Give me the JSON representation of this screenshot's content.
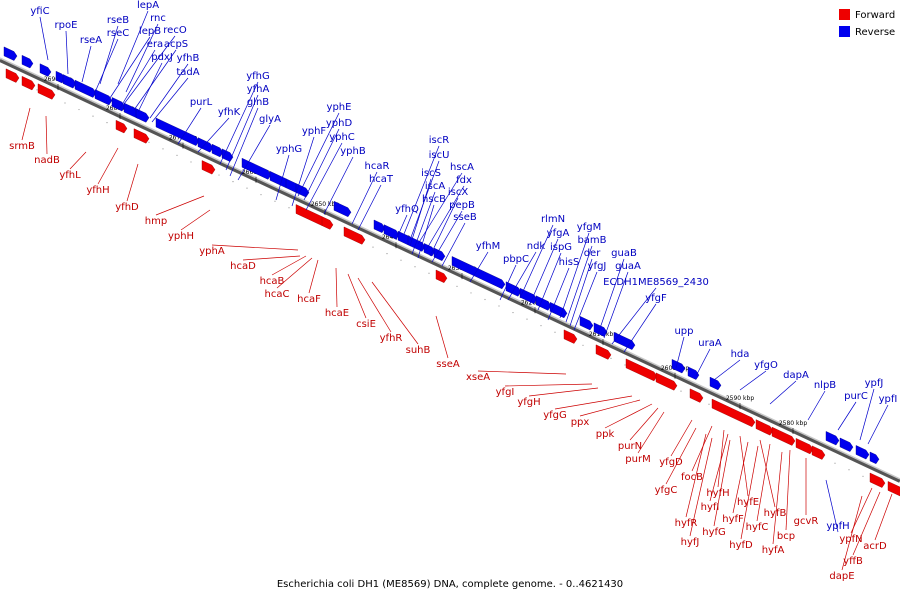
{
  "caption": "Escherichia coli DH1 (ME8569) DNA, complete genome. - 0..4621430",
  "legend": {
    "forward": {
      "label": "Forward",
      "color": "#ee0000"
    },
    "reverse": {
      "label": "Reverse",
      "color": "#0000ee"
    }
  },
  "ticks": [
    "2690 kbp",
    "2680 kbp",
    "2670 kbp",
    "2660 kbp",
    "2650 kbp",
    "2640 kbp",
    "2630 kbp",
    "2620 kbp",
    "2610 kbp",
    "2600 kbp",
    "2590 kbp",
    "2580 kbp"
  ],
  "reverse_labels": [
    "yfiC",
    "rpoE",
    "rseA",
    "rseB",
    "rseC",
    "lepA",
    "rnc",
    "lepB",
    "recO",
    "era",
    "acpS",
    "pdxJ",
    "yfhB",
    "tadA",
    "purL",
    "yfhK",
    "yfhG",
    "yfhA",
    "glnB",
    "glyA",
    "yphE",
    "yphD",
    "yphF",
    "yphC",
    "yphG",
    "yphB",
    "hcaR",
    "hcaT",
    "iscR",
    "iscU",
    "hscA",
    "iscS",
    "fdx",
    "iscA",
    "iscX",
    "hscB",
    "pepB",
    "yfhQ",
    "sseB",
    "yfhM",
    "rlmN",
    "ndk",
    "yfgA",
    "pbpC",
    "ispG",
    "yfgM",
    "bamB",
    "hisS",
    "der",
    "yfgJ",
    "guaB",
    "guaA",
    "ECDH1ME8569_2430",
    "yfgF",
    "upp",
    "uraA",
    "hda",
    "yfgO",
    "dapA",
    "nlpB",
    "purC",
    "ypfJ",
    "ypfI",
    "ypfH"
  ],
  "forward_labels": [
    "srmB",
    "nadB",
    "yfhL",
    "yfhH",
    "yfhD",
    "hmp",
    "yphH",
    "yphA",
    "hcaD",
    "hcaB",
    "hcaC",
    "hcaF",
    "hcaE",
    "csiE",
    "yfhR",
    "suhB",
    "sseA",
    "xseA",
    "yfgI",
    "yfgH",
    "yfgG",
    "ppx",
    "ppk",
    "purN",
    "purM",
    "yfgD",
    "focB",
    "yfgC",
    "hyfH",
    "hyfI",
    "hyfE",
    "hyfB",
    "hyfR",
    "hyfJ",
    "hyfG",
    "hyfF",
    "hyfC",
    "hyfD",
    "bcp",
    "hyfA",
    "gcvR",
    "ypfN",
    "yffB",
    "acrD",
    "dapE"
  ]
}
